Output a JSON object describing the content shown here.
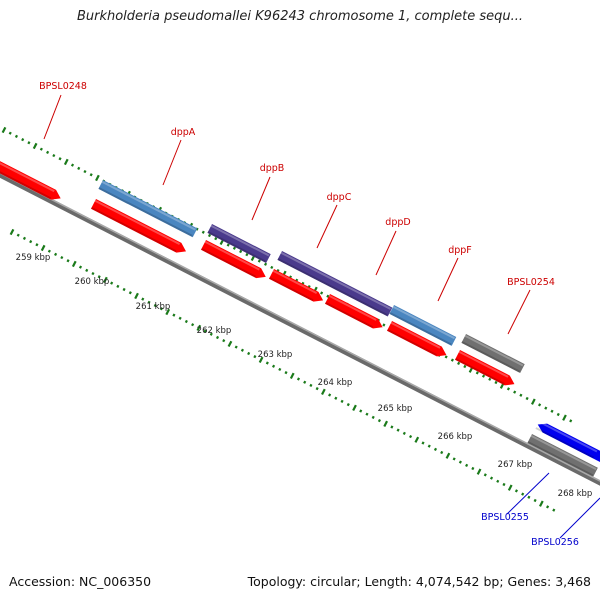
{
  "title": "Burkholderia pseudomallei K96243 chromosome 1, complete sequ...",
  "footer": {
    "accession": "Accession: NC_006350",
    "summary": "Topology: circular; Length: 4,074,542 bp; Genes: 3,468"
  },
  "colors": {
    "gene_label_forward": "#cc0000",
    "gene_label_reverse": "#0000cc",
    "cds": "#ff0000",
    "gene_blue": "#4a86c0",
    "gene_purple": "#4a3a8c",
    "gene_gray": "#707070",
    "gene_bright_blue": "#0000ee",
    "backbone": "#808080",
    "tick_marks": "#1a7a1a"
  },
  "scale_labels": [
    "259 kbp",
    "260 kbp",
    "261 kbp",
    "262 kbp",
    "263 kbp",
    "264 kbp",
    "265 kbp",
    "266 kbp",
    "267 kbp",
    "268 kbp"
  ],
  "gene_labels": [
    {
      "name": "BPSL0248",
      "strand": "forward"
    },
    {
      "name": "dppA",
      "strand": "forward"
    },
    {
      "name": "dppB",
      "strand": "forward"
    },
    {
      "name": "dppC",
      "strand": "forward"
    },
    {
      "name": "dppD",
      "strand": "forward"
    },
    {
      "name": "dppF",
      "strand": "forward"
    },
    {
      "name": "BPSL0254",
      "strand": "forward"
    },
    {
      "name": "BPSL0255",
      "strand": "reverse"
    },
    {
      "name": "BPSL0256",
      "strand": "reverse"
    }
  ]
}
